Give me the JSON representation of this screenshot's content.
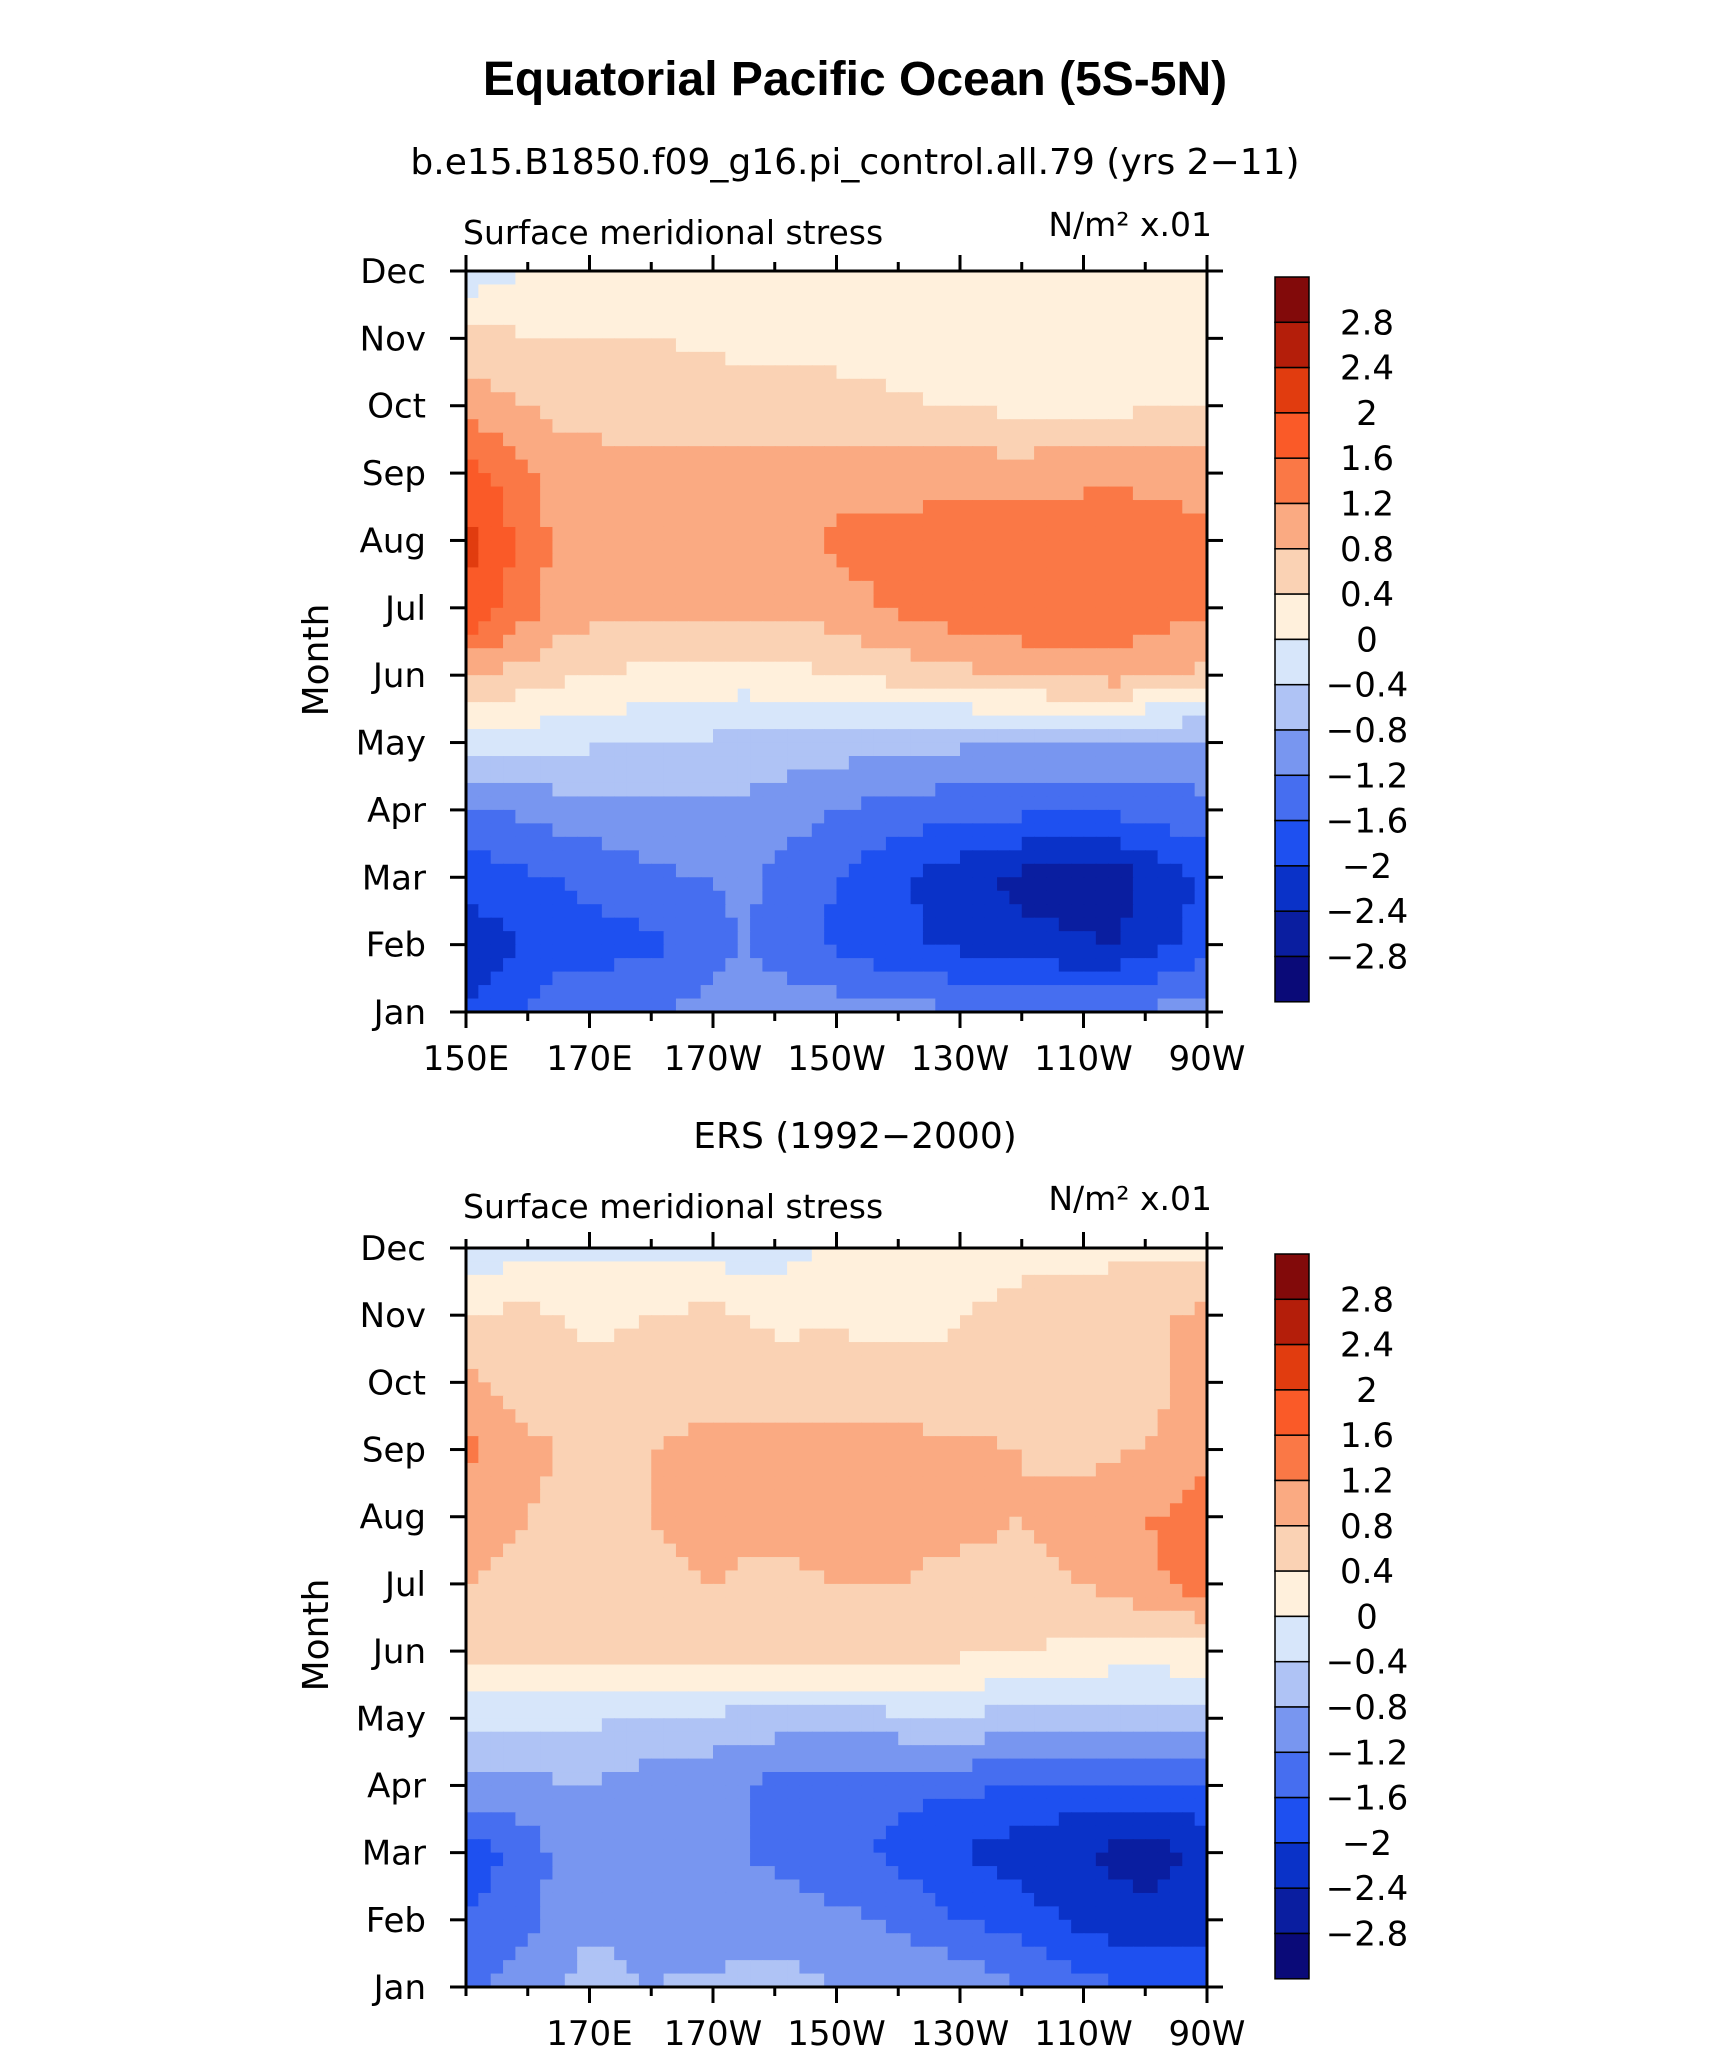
{
  "title": "Equatorial Pacific Ocean (5S-5N)",
  "colors": {
    "levels": [
      "#0a0a78",
      "#0a1ea0",
      "#0a32c8",
      "#1e50f0",
      "#466ef0",
      "#7896f0",
      "#afc3f5",
      "#d7e6fa",
      "#fff0dc",
      "#fad2b4",
      "#faaa82",
      "#fa7846",
      "#fa5a28",
      "#e13c0f",
      "#b41e0a",
      "#820a0a"
    ]
  },
  "colorbar": {
    "labels": [
      "2.8",
      "2.4",
      "2",
      "1.6",
      "1.2",
      "0.8",
      "0.4",
      "0",
      "−0.4",
      "−0.8",
      "−1.2",
      "−1.6",
      "−2",
      "−2.4",
      "−2.8"
    ]
  },
  "chart_data": [
    {
      "type": "heatmap",
      "title": "b.e15.B1850.f09_g16.pi_control.all.79 (yrs 2−11)",
      "variable": "Surface meridional stress",
      "units": "N/m² x.01",
      "ylabel": "Month",
      "x_tick_labels": [
        "150E",
        "170E",
        "170W",
        "150W",
        "130W",
        "110W",
        "90W"
      ],
      "x_tick_lons": [
        150,
        170,
        190,
        210,
        230,
        250,
        270
      ],
      "xlim": [
        150,
        270
      ],
      "months": [
        "Jan",
        "Feb",
        "Mar",
        "Apr",
        "May",
        "Jun",
        "Jul",
        "Aug",
        "Sep",
        "Oct",
        "Nov",
        "Dec"
      ],
      "lons": [
        150,
        165,
        180,
        195,
        210,
        225,
        240,
        255,
        270
      ],
      "values": [
        [
          -2.0,
          -1.4,
          -1.2,
          -1.0,
          -1.0,
          -1.1,
          -1.2,
          -1.2,
          -1.0
        ],
        [
          -2.3,
          -1.8,
          -1.7,
          -1.2,
          -1.7,
          -2.0,
          -2.3,
          -2.4,
          -1.8
        ],
        [
          -1.8,
          -1.6,
          -1.3,
          -1.1,
          -1.6,
          -2.1,
          -2.5,
          -2.6,
          -1.9
        ],
        [
          -1.3,
          -1.0,
          -0.9,
          -0.9,
          -1.2,
          -1.4,
          -1.5,
          -1.5,
          -1.3
        ],
        [
          -0.1,
          -0.3,
          -0.4,
          -0.5,
          -0.6,
          -0.7,
          -0.8,
          -0.9,
          -0.9
        ],
        [
          0.9,
          0.5,
          0.3,
          0.2,
          0.4,
          0.6,
          0.9,
          1.0,
          0.7
        ],
        [
          2.0,
          1.0,
          0.9,
          0.9,
          1.0,
          1.4,
          1.5,
          1.5,
          1.3
        ],
        [
          2.1,
          1.1,
          0.9,
          0.9,
          1.3,
          1.4,
          1.5,
          1.5,
          1.3
        ],
        [
          1.8,
          1.0,
          0.9,
          0.9,
          1.0,
          1.0,
          1.0,
          1.1,
          1.0
        ],
        [
          1.0,
          0.7,
          0.6,
          0.6,
          0.5,
          0.4,
          0.3,
          0.3,
          0.4
        ],
        [
          0.5,
          0.4,
          0.4,
          0.3,
          0.3,
          0.3,
          0.2,
          0.4,
          0.4
        ],
        [
          -0.3,
          0.2,
          0.2,
          0.2,
          0.2,
          0.2,
          0.2,
          0.3,
          0.3
        ]
      ]
    },
    {
      "type": "heatmap",
      "title": "ERS (1992−2000)",
      "variable": "Surface meridional stress",
      "units": "N/m² x.01",
      "ylabel": "Month",
      "x_tick_labels": [
        "170E",
        "170W",
        "150W",
        "130W",
        "110W",
        "90W"
      ],
      "x_tick_lons": [
        170,
        190,
        210,
        230,
        250,
        270
      ],
      "xlim": [
        150,
        270
      ],
      "months": [
        "Jan",
        "Feb",
        "Mar",
        "Apr",
        "May",
        "Jun",
        "Jul",
        "Aug",
        "Sep",
        "Oct",
        "Nov",
        "Dec"
      ],
      "lons": [
        150,
        160,
        170,
        180,
        190,
        200,
        210,
        220,
        230,
        240,
        250,
        260,
        270
      ],
      "values": [
        [
          -1.3,
          -1.0,
          -0.6,
          -0.8,
          -0.7,
          -0.6,
          -0.8,
          -0.8,
          -0.9,
          -1.2,
          -1.5,
          -1.6,
          -1.7
        ],
        [
          -1.6,
          -1.3,
          -0.9,
          -1.0,
          -1.1,
          -1.0,
          -1.1,
          -1.3,
          -1.6,
          -1.8,
          -2.1,
          -2.3,
          -2.2
        ],
        [
          -1.9,
          -1.4,
          -0.8,
          -1.0,
          -1.1,
          -1.3,
          -1.5,
          -1.7,
          -2.0,
          -2.2,
          -2.4,
          -2.6,
          -2.3
        ],
        [
          -0.9,
          -0.9,
          -0.8,
          -1.0,
          -1.1,
          -1.3,
          -1.4,
          -1.5,
          -1.5,
          -1.6,
          -1.7,
          -1.7,
          -1.6
        ],
        [
          -0.3,
          -0.3,
          -0.3,
          -0.5,
          -0.5,
          -0.6,
          -0.6,
          -0.5,
          -0.4,
          -0.6,
          -0.6,
          -0.6,
          -0.5
        ],
        [
          0.5,
          0.6,
          0.5,
          0.7,
          0.6,
          0.6,
          0.7,
          0.6,
          0.5,
          0.4,
          0.3,
          0.2,
          0.3
        ],
        [
          0.8,
          0.7,
          0.6,
          0.7,
          0.8,
          0.7,
          0.8,
          0.8,
          0.7,
          0.7,
          0.8,
          1.1,
          1.4
        ],
        [
          0.9,
          0.8,
          0.6,
          0.8,
          0.9,
          0.9,
          1.0,
          0.9,
          0.9,
          0.8,
          0.9,
          1.2,
          1.3
        ],
        [
          1.3,
          0.9,
          0.7,
          0.8,
          0.9,
          0.9,
          0.9,
          0.9,
          0.9,
          0.8,
          0.7,
          0.8,
          1.2
        ],
        [
          0.9,
          0.6,
          0.5,
          0.6,
          0.7,
          0.6,
          0.7,
          0.6,
          0.5,
          0.5,
          0.5,
          0.6,
          1.0
        ],
        [
          0.4,
          0.5,
          0.3,
          0.4,
          0.5,
          0.3,
          0.3,
          0.2,
          0.4,
          0.5,
          0.6,
          0.7,
          0.9
        ],
        [
          -0.2,
          -0.2,
          -0.1,
          -0.1,
          -0.2,
          -0.2,
          0.1,
          0.2,
          0.2,
          0.3,
          0.3,
          0.3,
          0.3
        ]
      ]
    }
  ]
}
